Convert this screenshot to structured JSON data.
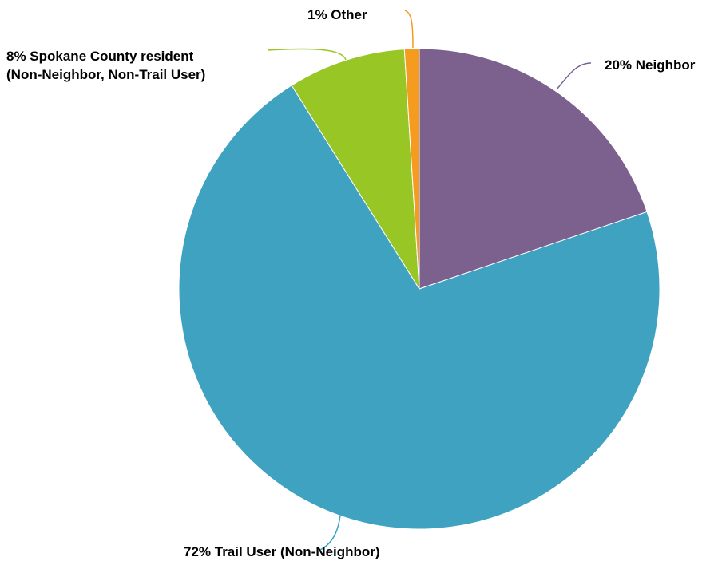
{
  "chart_data": {
    "type": "pie",
    "title": "",
    "start_angle_deg": 0,
    "direction": "clockwise",
    "slices": [
      {
        "name": "Neighbor",
        "value": 20,
        "color": "#7c618f",
        "label_lines": [
          "20% Neighbor"
        ]
      },
      {
        "name": "Trail User (Non-Neighbor)",
        "value": 72,
        "color": "#3fa2c0",
        "label_lines": [
          "72% Trail User (Non-Neighbor)"
        ]
      },
      {
        "name": "Spokane County resident (Non-Neighbor, Non-Trail User)",
        "value": 8,
        "color": "#97c625",
        "label_lines": [
          "8% Spokane County resident",
          "(Non-Neighbor, Non-Trail User)"
        ]
      },
      {
        "name": "Other",
        "value": 1,
        "color": "#f59b1f",
        "label_lines": [
          "1% Other"
        ]
      }
    ],
    "legend": "none",
    "label_placement": "outside with leader lines"
  }
}
